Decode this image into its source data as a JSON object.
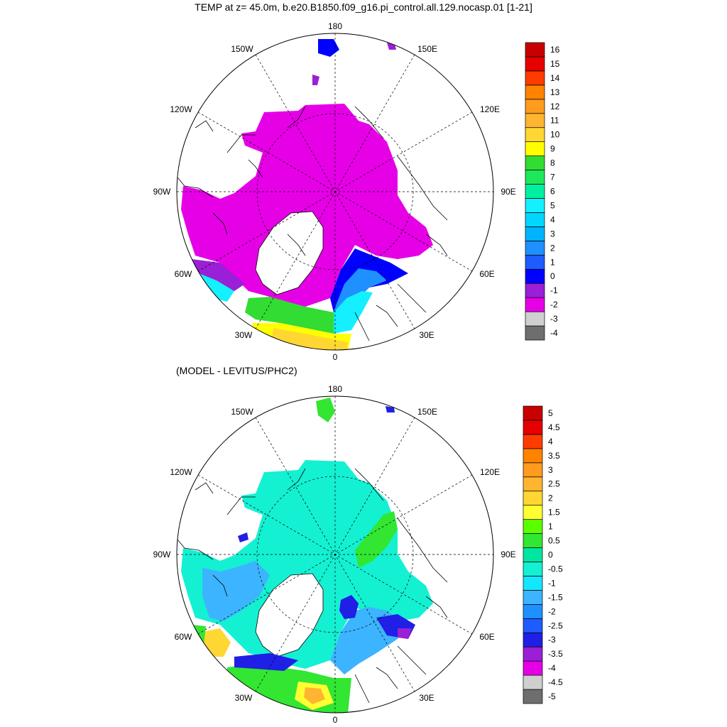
{
  "chart_data": [
    {
      "type": "heatmap",
      "projection": "north polar stereographic",
      "title": "TEMP at z=  45.0m, b.e20.B1850.f09_g16.pi_control.all.129.nocasp.01 [1-21]",
      "longitude_labels": [
        "180",
        "150E",
        "120E",
        "90E",
        "60E",
        "30E",
        "0",
        "30W",
        "60W",
        "90W",
        "120W",
        "150W"
      ],
      "colorbar": {
        "labels": [
          "-4",
          "-3",
          "-2",
          "-1",
          "0",
          "1",
          "2",
          "3",
          "4",
          "5",
          "6",
          "7",
          "8",
          "9",
          "10",
          "11",
          "12",
          "13",
          "14",
          "15",
          "16"
        ],
        "colors": [
          "#6e6e6e",
          "#cfcfcf",
          "#e600e6",
          "#9a1fd6",
          "#0000ff",
          "#1f5cff",
          "#1e90ff",
          "#00b4ff",
          "#00d6ff",
          "#14f0ff",
          "#00f0a0",
          "#1ee85a",
          "#32dc32",
          "#ffff00",
          "#ffd732",
          "#ffb432",
          "#ff9b1e",
          "#ff8200",
          "#ff3c00",
          "#e60000",
          "#c80000"
        ]
      },
      "dominant_region_values": {
        "central_arctic": -1.8,
        "barents_sea_west": 2.5,
        "norwegian_sea": 8.5,
        "labrador_sea": 4.0
      }
    },
    {
      "type": "heatmap",
      "projection": "north polar stereographic",
      "title": "(MODEL - LEVITUS/PHC2)",
      "longitude_labels": [
        "180",
        "150E",
        "120E",
        "90E",
        "60E",
        "30E",
        "0",
        "30W",
        "60W",
        "90W",
        "120W",
        "150W"
      ],
      "colorbar": {
        "labels": [
          "-5",
          "-4.5",
          "-4",
          "-3.5",
          "-3",
          "-2.5",
          "-2",
          "-1.5",
          "-1",
          "-0.5",
          "0",
          "0.5",
          "1",
          "1.5",
          "2",
          "2.5",
          "3",
          "3.5",
          "4",
          "4.5",
          "5"
        ],
        "colors": [
          "#6e6e6e",
          "#cfcfcf",
          "#e600e6",
          "#9a1fd6",
          "#1f1fe6",
          "#1f5cff",
          "#1e90ff",
          "#3cb4ff",
          "#14e6ff",
          "#14f0d2",
          "#00e6a0",
          "#32e632",
          "#5aff00",
          "#ffff32",
          "#ffd732",
          "#ffb432",
          "#ff9b1e",
          "#ff8200",
          "#ff3c00",
          "#e60000",
          "#c80000"
        ]
      },
      "dominant_region_values": {
        "central_arctic": -0.3,
        "barents_sea": -1.5,
        "kara_sea_edge": -2.8,
        "norwegian_sea": 1.5
      }
    }
  ]
}
